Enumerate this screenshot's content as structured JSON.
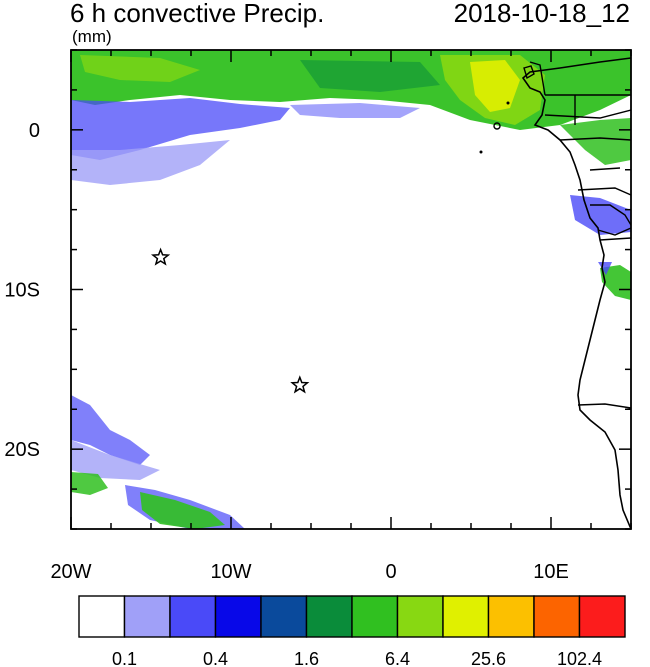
{
  "header": {
    "title": "6 h convective Precip.",
    "datetime": "2018-10-18_12",
    "units": "(mm)"
  },
  "map": {
    "lon_range": [
      -20,
      15
    ],
    "lat_range": [
      -25,
      5
    ],
    "x_ticks": [
      {
        "lon": -20,
        "label": "20W"
      },
      {
        "lon": -10,
        "label": "10W"
      },
      {
        "lon": 0,
        "label": "0"
      },
      {
        "lon": 10,
        "label": "10E"
      }
    ],
    "y_ticks": [
      {
        "lat": 0,
        "label": "0"
      },
      {
        "lat": -10,
        "label": "10S"
      },
      {
        "lat": -20,
        "label": "20S"
      }
    ],
    "stars": [
      {
        "name": "star-marker-north",
        "lon": -14.4,
        "lat": -8.0
      },
      {
        "name": "star-marker-south",
        "lon": -5.7,
        "lat": -16.0
      }
    ]
  },
  "colorbar": {
    "colors": [
      "#ffffff",
      "#a0a0f8",
      "#4a4af8",
      "#0808e8",
      "#0a4a9c",
      "#0a8c3a",
      "#30c020",
      "#88d812",
      "#e0f000",
      "#fcc000",
      "#fc6400",
      "#fc1c1c"
    ],
    "labels": [
      "0.1",
      "0.4",
      "1.6",
      "6.4",
      "25.6",
      "102.4"
    ]
  }
}
